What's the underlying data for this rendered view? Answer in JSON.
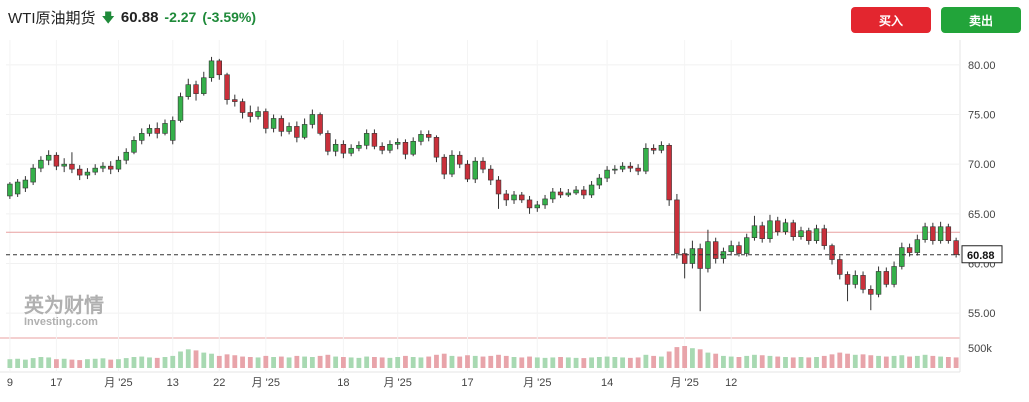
{
  "header": {
    "instrument": "WTI原油期货",
    "direction_icon": "down-arrow-icon",
    "last_price": "60.88",
    "change": "-2.27",
    "change_pct": "(-3.59%)"
  },
  "actions": {
    "buy_label": "买入",
    "sell_label": "卖出"
  },
  "colors": {
    "up": "#35b04a",
    "down": "#c9303b",
    "up_vol": "#a8d9b2",
    "down_vol": "#e8a4aa",
    "buy": "#e3262f",
    "sell": "#22a43a",
    "change": "#1f8a3a"
  },
  "watermark": {
    "brand_cn": "英为财情",
    "brand_en": "Investing.com"
  },
  "chart_data": {
    "type": "candlestick",
    "y_axis": {
      "min": 52.5,
      "max": 82.5,
      "ticks": [
        "80.00",
        "75.00",
        "70.00",
        "65.00",
        "60.00",
        "55.00"
      ],
      "side": "right"
    },
    "volume_axis": {
      "label": "500k",
      "max": 500000
    },
    "last_price_line": {
      "value": 60.88,
      "label": "60.88"
    },
    "reference_line": {
      "value": 63.15
    },
    "x_ticks": [
      {
        "label": "9",
        "index": 0
      },
      {
        "label": "17",
        "index": 6
      },
      {
        "label": "月 '25",
        "index": 14
      },
      {
        "label": "13",
        "index": 21
      },
      {
        "label": "22",
        "index": 27
      },
      {
        "label": "月 '25",
        "index": 33
      },
      {
        "label": "18",
        "index": 43
      },
      {
        "label": "月 '25",
        "index": 50
      },
      {
        "label": "17",
        "index": 59
      },
      {
        "label": "月 '25",
        "index": 68
      },
      {
        "label": "14",
        "index": 77
      },
      {
        "label": "月 '25",
        "index": 87
      },
      {
        "label": "12",
        "index": 93
      }
    ],
    "candles": [
      [
        66.8,
        68.0,
        66.5,
        68.2
      ],
      [
        67.0,
        68.2,
        66.7,
        68.5
      ],
      [
        67.6,
        68.4,
        67.2,
        68.8
      ],
      [
        68.2,
        69.6,
        67.9,
        70.0
      ],
      [
        69.6,
        70.4,
        69.2,
        70.8
      ],
      [
        70.4,
        70.9,
        69.9,
        71.4
      ],
      [
        70.9,
        69.8,
        69.4,
        71.2
      ],
      [
        69.8,
        70.0,
        69.2,
        70.6
      ],
      [
        70.0,
        69.5,
        69.1,
        71.2
      ],
      [
        69.5,
        68.9,
        68.4,
        69.9
      ],
      [
        68.9,
        69.2,
        68.5,
        69.6
      ],
      [
        69.2,
        69.6,
        68.9,
        70.0
      ],
      [
        69.6,
        69.8,
        69.2,
        70.2
      ],
      [
        69.8,
        69.5,
        69.0,
        70.3
      ],
      [
        69.5,
        70.4,
        69.2,
        70.8
      ],
      [
        70.4,
        71.2,
        70.0,
        71.6
      ],
      [
        71.2,
        72.4,
        71.0,
        72.8
      ],
      [
        72.4,
        73.1,
        72.0,
        73.6
      ],
      [
        73.1,
        73.6,
        72.8,
        74.0
      ],
      [
        73.6,
        73.1,
        72.6,
        74.2
      ],
      [
        73.1,
        74.1,
        72.9,
        74.5
      ],
      [
        72.4,
        74.4,
        72.0,
        74.8
      ],
      [
        74.4,
        76.8,
        74.2,
        77.2
      ],
      [
        76.8,
        78.0,
        76.5,
        78.6
      ],
      [
        78.0,
        77.1,
        76.4,
        78.4
      ],
      [
        77.1,
        78.7,
        76.9,
        79.3
      ],
      [
        78.7,
        80.4,
        78.3,
        80.8
      ],
      [
        80.4,
        79.0,
        78.5,
        80.6
      ],
      [
        79.0,
        76.5,
        76.0,
        79.2
      ],
      [
        76.5,
        76.3,
        75.8,
        77.0
      ],
      [
        76.3,
        75.2,
        74.6,
        76.6
      ],
      [
        75.2,
        74.8,
        74.2,
        75.9
      ],
      [
        74.8,
        75.3,
        74.5,
        75.8
      ],
      [
        75.3,
        73.6,
        73.1,
        75.6
      ],
      [
        73.6,
        74.6,
        73.2,
        75.0
      ],
      [
        74.6,
        73.3,
        72.8,
        74.9
      ],
      [
        73.3,
        73.8,
        73.0,
        74.2
      ],
      [
        73.8,
        72.7,
        72.2,
        74.3
      ],
      [
        72.7,
        74.0,
        72.5,
        74.6
      ],
      [
        74.0,
        75.0,
        73.6,
        75.5
      ],
      [
        75.0,
        73.1,
        72.9,
        75.2
      ],
      [
        73.1,
        71.3,
        70.9,
        73.4
      ],
      [
        71.3,
        72.0,
        70.8,
        72.5
      ],
      [
        72.0,
        71.1,
        70.6,
        72.4
      ],
      [
        71.1,
        71.6,
        70.8,
        72.0
      ],
      [
        71.6,
        71.9,
        71.3,
        72.3
      ],
      [
        71.9,
        73.1,
        71.5,
        73.5
      ],
      [
        73.1,
        71.8,
        71.5,
        73.5
      ],
      [
        71.8,
        71.4,
        71.0,
        72.2
      ],
      [
        71.4,
        72.0,
        71.1,
        72.4
      ],
      [
        72.0,
        72.2,
        71.5,
        72.6
      ],
      [
        72.2,
        71.0,
        70.5,
        72.5
      ],
      [
        71.0,
        72.3,
        70.8,
        72.7
      ],
      [
        72.3,
        73.0,
        71.9,
        73.4
      ],
      [
        73.0,
        72.7,
        72.3,
        73.4
      ],
      [
        72.7,
        70.7,
        70.2,
        72.9
      ],
      [
        70.7,
        69.0,
        68.5,
        71.0
      ],
      [
        69.0,
        70.9,
        68.7,
        71.4
      ],
      [
        70.9,
        70.0,
        69.6,
        71.3
      ],
      [
        70.0,
        68.5,
        68.2,
        70.4
      ],
      [
        68.5,
        70.3,
        68.1,
        70.7
      ],
      [
        70.3,
        69.5,
        69.1,
        70.7
      ],
      [
        69.5,
        68.4,
        67.9,
        69.9
      ],
      [
        68.4,
        67.0,
        65.5,
        68.8
      ],
      [
        67.0,
        66.4,
        65.8,
        67.4
      ],
      [
        66.4,
        66.9,
        66.0,
        67.3
      ],
      [
        66.9,
        66.4,
        66.1,
        67.2
      ],
      [
        66.4,
        65.6,
        65.0,
        66.8
      ],
      [
        65.6,
        65.9,
        65.2,
        66.3
      ],
      [
        65.9,
        66.5,
        65.5,
        66.9
      ],
      [
        66.5,
        67.2,
        66.1,
        67.6
      ],
      [
        67.2,
        66.9,
        66.6,
        67.6
      ],
      [
        66.9,
        67.1,
        66.7,
        67.5
      ],
      [
        67.1,
        67.4,
        66.9,
        67.8
      ],
      [
        67.4,
        66.9,
        66.5,
        67.8
      ],
      [
        66.9,
        67.9,
        66.6,
        68.3
      ],
      [
        67.9,
        68.6,
        67.5,
        69.0
      ],
      [
        68.6,
        69.4,
        68.2,
        69.8
      ],
      [
        69.4,
        69.5,
        69.0,
        69.9
      ],
      [
        69.5,
        69.8,
        69.2,
        70.2
      ],
      [
        69.8,
        69.6,
        69.2,
        70.2
      ],
      [
        69.6,
        69.3,
        68.9,
        70.0
      ],
      [
        69.3,
        71.6,
        69.0,
        72.1
      ],
      [
        71.6,
        71.4,
        71.0,
        72.0
      ],
      [
        71.4,
        71.9,
        71.1,
        72.3
      ],
      [
        71.9,
        66.4,
        65.8,
        72.1
      ],
      [
        66.4,
        61.0,
        60.5,
        67.0
      ],
      [
        61.0,
        60.0,
        58.5,
        61.5
      ],
      [
        60.0,
        61.5,
        59.5,
        62.3
      ],
      [
        61.5,
        59.5,
        55.2,
        62.0
      ],
      [
        59.5,
        62.2,
        59.1,
        63.4
      ],
      [
        62.2,
        60.5,
        60.0,
        62.6
      ],
      [
        60.5,
        61.2,
        60.0,
        61.6
      ],
      [
        61.2,
        61.8,
        60.8,
        62.3
      ],
      [
        61.8,
        61.0,
        60.7,
        62.2
      ],
      [
        61.0,
        62.6,
        60.7,
        63.0
      ],
      [
        62.6,
        63.8,
        62.3,
        64.8
      ],
      [
        63.8,
        62.5,
        62.1,
        64.2
      ],
      [
        62.5,
        64.3,
        62.1,
        64.9
      ],
      [
        64.3,
        63.2,
        62.8,
        64.7
      ],
      [
        63.2,
        64.1,
        62.9,
        64.5
      ],
      [
        64.1,
        62.7,
        62.3,
        64.4
      ],
      [
        62.7,
        63.3,
        62.4,
        63.7
      ],
      [
        63.3,
        62.3,
        61.9,
        63.6
      ],
      [
        62.3,
        63.5,
        62.0,
        63.9
      ],
      [
        63.5,
        61.8,
        61.4,
        63.9
      ],
      [
        61.8,
        60.4,
        59.9,
        62.0
      ],
      [
        60.4,
        58.9,
        58.4,
        60.8
      ],
      [
        58.9,
        57.9,
        56.2,
        59.2
      ],
      [
        57.9,
        58.8,
        57.5,
        59.3
      ],
      [
        58.8,
        57.4,
        57.0,
        59.2
      ],
      [
        57.4,
        56.9,
        55.3,
        57.8
      ],
      [
        56.9,
        59.2,
        56.6,
        59.7
      ],
      [
        59.2,
        57.9,
        57.6,
        59.6
      ],
      [
        57.9,
        59.7,
        57.6,
        60.2
      ],
      [
        59.7,
        61.6,
        59.4,
        62.1
      ],
      [
        61.6,
        61.1,
        60.7,
        62.0
      ],
      [
        61.1,
        62.4,
        60.8,
        62.9
      ],
      [
        62.4,
        63.7,
        62.1,
        64.1
      ],
      [
        63.7,
        62.3,
        61.9,
        64.1
      ],
      [
        62.3,
        63.7,
        62.0,
        64.2
      ],
      [
        63.7,
        62.3,
        62.0,
        64.0
      ],
      [
        62.3,
        60.9,
        60.6,
        62.6
      ]
    ],
    "volume": [
      0.4,
      0.42,
      0.38,
      0.45,
      0.5,
      0.48,
      0.4,
      0.42,
      0.38,
      0.36,
      0.4,
      0.42,
      0.44,
      0.38,
      0.4,
      0.45,
      0.5,
      0.52,
      0.48,
      0.46,
      0.5,
      0.55,
      0.75,
      0.85,
      0.8,
      0.7,
      0.65,
      0.55,
      0.62,
      0.58,
      0.52,
      0.5,
      0.48,
      0.55,
      0.5,
      0.52,
      0.48,
      0.55,
      0.52,
      0.5,
      0.55,
      0.6,
      0.52,
      0.5,
      0.48,
      0.46,
      0.52,
      0.5,
      0.48,
      0.46,
      0.5,
      0.55,
      0.5,
      0.48,
      0.52,
      0.6,
      0.65,
      0.55,
      0.52,
      0.58,
      0.55,
      0.52,
      0.55,
      0.6,
      0.55,
      0.5,
      0.48,
      0.52,
      0.48,
      0.46,
      0.48,
      0.5,
      0.48,
      0.46,
      0.45,
      0.48,
      0.5,
      0.52,
      0.5,
      0.48,
      0.46,
      0.48,
      0.6,
      0.55,
      0.52,
      0.75,
      0.95,
      1.0,
      0.9,
      0.85,
      0.7,
      0.65,
      0.55,
      0.52,
      0.5,
      0.55,
      0.6,
      0.58,
      0.55,
      0.52,
      0.5,
      0.48,
      0.5,
      0.48,
      0.5,
      0.55,
      0.62,
      0.7,
      0.65,
      0.6,
      0.62,
      0.58,
      0.55,
      0.52,
      0.55,
      0.58,
      0.52,
      0.55,
      0.6,
      0.55,
      0.52,
      0.5,
      0.48
    ]
  }
}
